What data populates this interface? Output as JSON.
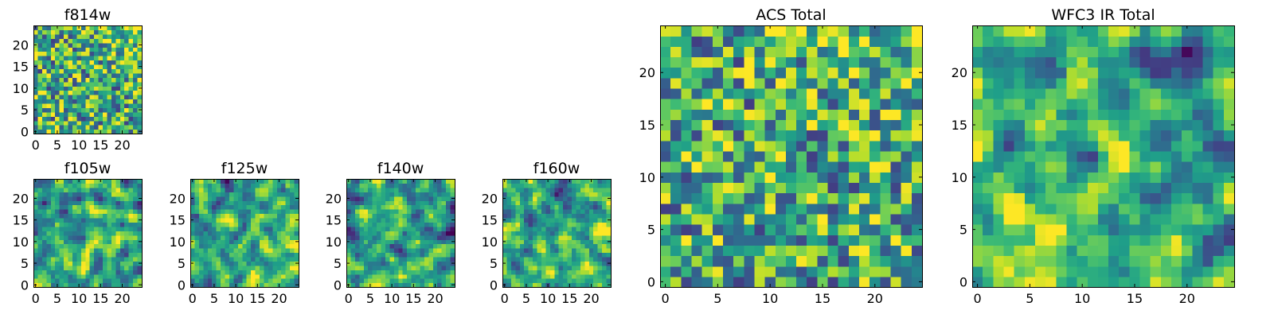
{
  "chart_data": [
    {
      "id": "f814w",
      "type": "heatmap",
      "title": "f814w",
      "grid": [
        25,
        25
      ],
      "xlim": [
        0,
        24
      ],
      "ylim": [
        0,
        24
      ],
      "xticks": [
        "0",
        "5",
        "10",
        "15",
        "20"
      ],
      "yticks": [
        "0",
        "5",
        "10",
        "15",
        "20"
      ],
      "colormap": "viridis",
      "seed": 11,
      "bright_region": "top-right",
      "bright_strength": 0.35,
      "xlabel": "",
      "ylabel": ""
    },
    {
      "id": "f105w",
      "type": "heatmap",
      "title": "f105w",
      "grid": [
        25,
        25
      ],
      "xlim": [
        0,
        24
      ],
      "ylim": [
        0,
        24
      ],
      "xticks": [
        "0",
        "5",
        "10",
        "15",
        "20"
      ],
      "yticks": [
        "0",
        "5",
        "10",
        "15",
        "20"
      ],
      "colormap": "viridis",
      "seed": 23,
      "smooth": true,
      "xlabel": "",
      "ylabel": ""
    },
    {
      "id": "f125w",
      "type": "heatmap",
      "title": "f125w",
      "grid": [
        25,
        25
      ],
      "xlim": [
        0,
        24
      ],
      "ylim": [
        0,
        24
      ],
      "xticks": [
        "0",
        "5",
        "10",
        "15",
        "20"
      ],
      "yticks": [
        "0",
        "5",
        "10",
        "15",
        "20"
      ],
      "colormap": "viridis",
      "seed": 37,
      "smooth": true,
      "xlabel": "",
      "ylabel": ""
    },
    {
      "id": "f140w",
      "type": "heatmap",
      "title": "f140w",
      "grid": [
        25,
        25
      ],
      "xlim": [
        0,
        24
      ],
      "ylim": [
        0,
        24
      ],
      "xticks": [
        "0",
        "5",
        "10",
        "15",
        "20"
      ],
      "yticks": [
        "0",
        "5",
        "10",
        "15",
        "20"
      ],
      "colormap": "viridis",
      "seed": 41,
      "smooth": true,
      "xlabel": "",
      "ylabel": ""
    },
    {
      "id": "f160w",
      "type": "heatmap",
      "title": "f160w",
      "grid": [
        25,
        25
      ],
      "xlim": [
        0,
        24
      ],
      "ylim": [
        0,
        24
      ],
      "xticks": [
        "0",
        "5",
        "10",
        "15",
        "20"
      ],
      "yticks": [
        "0",
        "5",
        "10",
        "15",
        "20"
      ],
      "colormap": "viridis",
      "seed": 53,
      "smooth": true,
      "xlabel": "",
      "ylabel": ""
    },
    {
      "id": "acs_total",
      "type": "heatmap",
      "title": "ACS Total",
      "grid": [
        25,
        25
      ],
      "xlim": [
        0,
        24
      ],
      "ylim": [
        0,
        24
      ],
      "xticks": [
        "0",
        "5",
        "10",
        "15",
        "20"
      ],
      "yticks": [
        "0",
        "5",
        "10",
        "15",
        "20"
      ],
      "colormap": "viridis",
      "seed": 67,
      "bright_region": "top-right",
      "bright_strength": 0.2,
      "xlabel": "",
      "ylabel": ""
    },
    {
      "id": "wfc3_ir_total",
      "type": "heatmap",
      "title": "WFC3 IR Total",
      "grid": [
        25,
        25
      ],
      "xlim": [
        0,
        24
      ],
      "ylim": [
        0,
        24
      ],
      "xticks": [
        "0",
        "5",
        "10",
        "15",
        "20"
      ],
      "yticks": [
        "0",
        "5",
        "10",
        "15",
        "20"
      ],
      "colormap": "viridis",
      "seed": 79,
      "smooth": true,
      "bright_region": "left",
      "dark_region": "top-right",
      "bright_strength": 0.3,
      "xlabel": "",
      "ylabel": ""
    }
  ]
}
